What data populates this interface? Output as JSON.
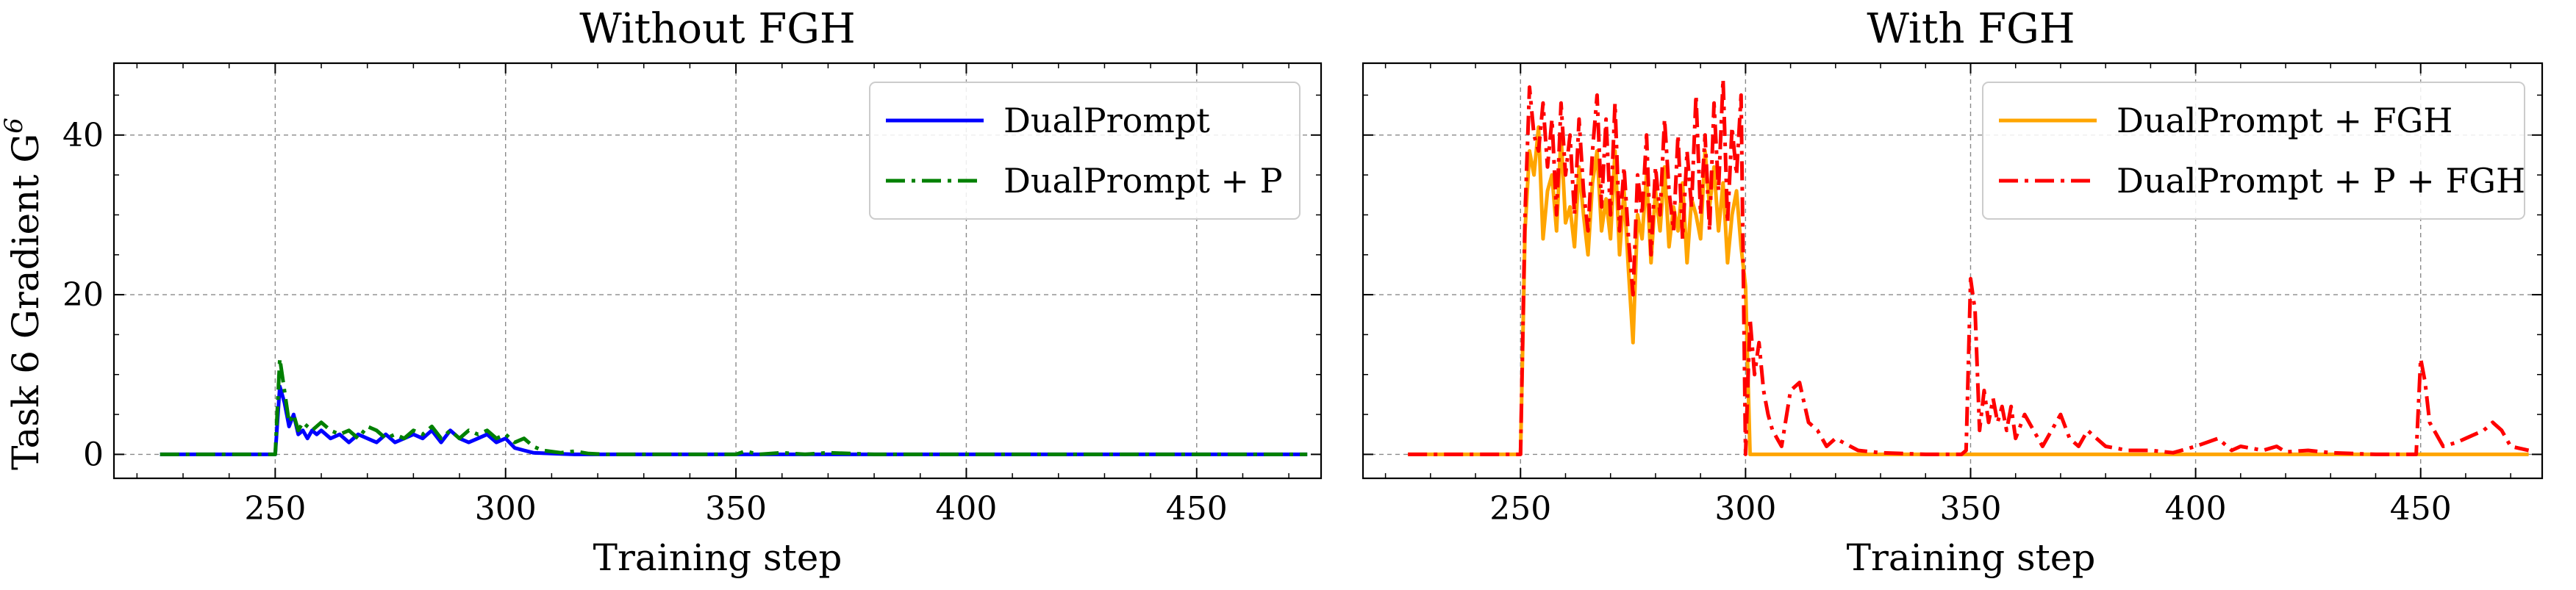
{
  "ylabel": "Task 6 Gradient G",
  "ylabel_sup": "6",
  "chart_data": [
    {
      "type": "line",
      "title": "Without FGH",
      "xlabel": "Training step",
      "ylabel": "Task 6 Gradient G6",
      "xlim": [
        215,
        477
      ],
      "ylim": [
        -3,
        49
      ],
      "xticks": [
        250,
        300,
        350,
        400,
        450
      ],
      "yticks": [
        0,
        20,
        40
      ],
      "grid": true,
      "legend": "top-right",
      "series": [
        {
          "name": "DualPrompt",
          "color": "#0000ff",
          "dash": "solid",
          "x": [
            225,
            248,
            249,
            250,
            251,
            252,
            253,
            254,
            255,
            256,
            257,
            258,
            259,
            260,
            262,
            264,
            266,
            268,
            270,
            272,
            274,
            276,
            278,
            280,
            282,
            284,
            286,
            288,
            290,
            292,
            294,
            296,
            298,
            300,
            302,
            304,
            306,
            310,
            315,
            320,
            330,
            340,
            350,
            360,
            370,
            380,
            390,
            400,
            420,
            440,
            460,
            474
          ],
          "y": [
            0,
            0,
            0,
            0,
            8.5,
            6.5,
            3.5,
            5,
            2.5,
            3,
            2,
            3,
            2.5,
            3,
            2,
            2.5,
            1.5,
            2.5,
            2,
            1.5,
            2.5,
            1.5,
            2,
            2.5,
            2,
            3,
            1.5,
            3,
            2,
            1.5,
            2,
            2.5,
            1.5,
            2,
            0.8,
            0.5,
            0.2,
            0.1,
            0,
            0,
            0,
            0,
            0,
            0,
            0,
            0,
            0,
            0,
            0,
            0,
            0,
            0
          ]
        },
        {
          "name": "DualPrompt + P",
          "color": "#008000",
          "dash": "dashdot",
          "x": [
            225,
            248,
            249,
            250,
            251,
            252,
            253,
            254,
            255,
            256,
            257,
            258,
            260,
            262,
            264,
            266,
            268,
            270,
            272,
            274,
            276,
            278,
            280,
            282,
            284,
            286,
            288,
            290,
            292,
            294,
            296,
            298,
            300,
            302,
            304,
            306,
            308,
            312,
            315,
            318,
            322,
            330,
            340,
            350,
            352,
            355,
            360,
            365,
            370,
            380,
            390,
            400,
            420,
            440,
            460,
            474
          ],
          "y": [
            0,
            0,
            0,
            0,
            12,
            8,
            4,
            5,
            3,
            4,
            3.5,
            3,
            4,
            3,
            2.5,
            3,
            2,
            3.5,
            3,
            2,
            2.5,
            2,
            3,
            2.5,
            3.5,
            2,
            3,
            2,
            3,
            2.5,
            3,
            2,
            2.5,
            1.5,
            2,
            1,
            0.5,
            0.2,
            0.4,
            0.1,
            0,
            0,
            0,
            0,
            0.4,
            0,
            0.2,
            0,
            0.2,
            0,
            0,
            0,
            0,
            0,
            0,
            0
          ]
        }
      ]
    },
    {
      "type": "line",
      "title": "With FGH",
      "xlabel": "Training step",
      "ylabel": "",
      "xlim": [
        215,
        477
      ],
      "ylim": [
        -3,
        49
      ],
      "xticks": [
        250,
        300,
        350,
        400,
        450
      ],
      "yticks": [
        0,
        20,
        40
      ],
      "grid": true,
      "legend": "top-right",
      "series": [
        {
          "name": "DualPrompt + FGH",
          "color": "#ffa500",
          "dash": "solid",
          "x": [
            225,
            248,
            249,
            250,
            251,
            252,
            253,
            254,
            255,
            256,
            257,
            258,
            259,
            260,
            261,
            262,
            263,
            264,
            265,
            266,
            267,
            268,
            269,
            270,
            271,
            272,
            273,
            274,
            275,
            276,
            277,
            278,
            279,
            280,
            281,
            282,
            283,
            284,
            285,
            286,
            287,
            288,
            289,
            290,
            291,
            292,
            293,
            294,
            295,
            296,
            297,
            298,
            299,
            300,
            301,
            310,
            350,
            400,
            450,
            474
          ],
          "y": [
            0,
            0,
            0,
            0,
            28,
            38,
            35,
            41,
            27,
            33,
            35,
            28,
            40,
            29,
            31,
            26,
            36,
            30,
            25,
            34,
            38,
            28,
            32,
            27,
            38,
            25,
            33,
            23,
            14,
            30,
            27,
            35,
            24,
            33,
            28,
            36,
            26,
            31,
            28,
            34,
            24,
            32,
            30,
            27,
            38,
            31,
            36,
            28,
            34,
            24,
            30,
            33,
            26,
            21,
            0,
            0,
            0,
            0,
            0,
            0
          ]
        },
        {
          "name": "DualPrompt + P + FGH",
          "color": "#ff0000",
          "dash": "dashdot",
          "x": [
            225,
            248,
            249,
            250,
            251,
            252,
            253,
            254,
            255,
            256,
            257,
            258,
            259,
            260,
            261,
            262,
            263,
            264,
            265,
            266,
            267,
            268,
            269,
            270,
            271,
            272,
            273,
            274,
            275,
            276,
            277,
            278,
            279,
            280,
            281,
            282,
            283,
            284,
            285,
            286,
            287,
            288,
            289,
            290,
            291,
            292,
            293,
            294,
            295,
            296,
            297,
            298,
            299,
            300,
            301,
            302,
            303,
            304,
            305,
            306,
            308,
            310,
            312,
            314,
            316,
            318,
            320,
            325,
            330,
            340,
            348,
            349,
            350,
            351,
            352,
            353,
            354,
            355,
            356,
            357,
            358,
            359,
            360,
            362,
            364,
            366,
            368,
            370,
            372,
            374,
            376,
            378,
            380,
            385,
            390,
            395,
            400,
            405,
            408,
            410,
            415,
            418,
            420,
            425,
            430,
            440,
            448,
            449,
            450,
            451,
            452,
            453,
            455,
            458,
            460,
            462,
            464,
            466,
            468,
            470,
            474
          ],
          "y": [
            0,
            0,
            0,
            0,
            30,
            46,
            40,
            38,
            44,
            36,
            42,
            30,
            44,
            35,
            40,
            30,
            42,
            33,
            28,
            38,
            45,
            31,
            42,
            30,
            44,
            28,
            36,
            27,
            20,
            35,
            30,
            40,
            25,
            36,
            30,
            42,
            33,
            28,
            40,
            27,
            38,
            31,
            45,
            30,
            40,
            28,
            44,
            33,
            47,
            29,
            41,
            35,
            45,
            0,
            17,
            10,
            14,
            8,
            5,
            3,
            1,
            8,
            9,
            4,
            3,
            1,
            2,
            0.5,
            0.2,
            0,
            0,
            0.5,
            22,
            18,
            3,
            8,
            4,
            7,
            4,
            6,
            3,
            6,
            2,
            5,
            3,
            1,
            3,
            5,
            2,
            1,
            3,
            2,
            1,
            0.5,
            0.5,
            0.2,
            1,
            2,
            0.5,
            1,
            0.5,
            1,
            0.3,
            0.5,
            0.2,
            0,
            0,
            0,
            12,
            9,
            4,
            3,
            1,
            1.5,
            2,
            2.5,
            3,
            4,
            3,
            1,
            0.5
          ]
        }
      ]
    }
  ]
}
